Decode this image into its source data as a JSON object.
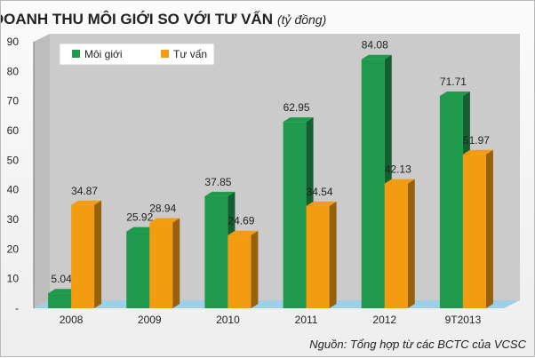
{
  "title_main": "DOANH THU MÔI GIỚI SO VỚI TƯ VẤN",
  "title_unit": "(tỷ đồng)",
  "source": "Nguồn: Tổng hợp từ các BCTC của VCSC",
  "colors": {
    "moi_gioi": "#1f9a4c",
    "tu_van": "#f39c12",
    "plot_wall": "#cbcbcb",
    "floor": "#9dcfe6"
  },
  "chart_data": {
    "type": "bar",
    "categories": [
      "2008",
      "2009",
      "2010",
      "2011",
      "2012",
      "9T2013"
    ],
    "series": [
      {
        "name": "Môi giới",
        "values": [
          5.04,
          25.92,
          37.85,
          62.95,
          84.08,
          71.71
        ]
      },
      {
        "name": "Tư vấn",
        "values": [
          34.87,
          28.94,
          24.69,
          34.54,
          42.13,
          51.97
        ]
      }
    ],
    "data_labels": [
      [
        "5.04",
        "25.92",
        "37.85",
        "62.95",
        "84.08",
        "71.71"
      ],
      [
        "34.87",
        "28.94",
        "24.69",
        "34.54",
        "42.13",
        "51.97"
      ]
    ],
    "y_tick_labels": [
      "-",
      "10",
      "20",
      "30",
      "40",
      "50",
      "60",
      "70",
      "80",
      "90"
    ],
    "ylim": [
      0,
      90
    ],
    "grid": false,
    "legend_position": "top-left"
  }
}
